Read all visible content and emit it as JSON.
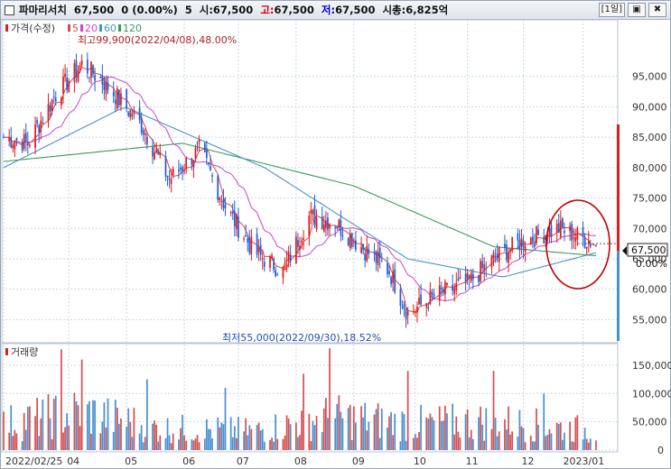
{
  "header": {
    "stock_name": "파마리서치",
    "price": "67,500",
    "change": "0 (0.00%)",
    "volume_label": "5",
    "open_label": "시:",
    "open": "67,500",
    "high_label": "고:",
    "high": "67,500",
    "low_label": "저:",
    "low": "67,500",
    "mcap_label": "시총:",
    "mcap": "6,825억",
    "period_button": "[1일]",
    "restore_icon": "restore-icon",
    "close_icon": "close-icon"
  },
  "colors": {
    "up": "#e21b1b",
    "down": "#1f5fd6",
    "ma5": "#e04646",
    "ma20": "#cc44cc",
    "ma60": "#4a90d0",
    "ma120": "#3a9a5a",
    "grid": "#c9d6e6",
    "current": "#111111",
    "highlight_circle": "#c40000",
    "volume": "#d65050"
  },
  "chart_data": [
    {
      "type": "candlestick",
      "title": "가격(수정)",
      "legend": [
        {
          "name": "5",
          "color": "#e04646"
        },
        {
          "name": "20",
          "color": "#cc44cc"
        },
        {
          "name": "60",
          "color": "#4a90d0"
        },
        {
          "name": "120",
          "color": "#3a9a5a"
        }
      ],
      "ylim": [
        51500,
        104000
      ],
      "y_ticks": [
        "95,000",
        "90,000",
        "85,000",
        "80,000",
        "75,000",
        "70,000",
        "65,000",
        "60,000",
        "55,000"
      ],
      "y_tick_values": [
        95000,
        90000,
        85000,
        80000,
        75000,
        70000,
        65000,
        60000,
        55000
      ],
      "current_price": "67,500",
      "current_change": "0.00%",
      "current_value": 67500,
      "ohlc_keypoints": [
        {
          "x": "2022-02-25",
          "close": 85000
        },
        {
          "x": "2022-03-10",
          "close": 84000
        },
        {
          "x": "2022-03-25",
          "close": 92000
        },
        {
          "x": "2022-04-08",
          "close": 97000
        },
        {
          "x": "2022-04-20",
          "close": 94000
        },
        {
          "x": "2022-05-10",
          "close": 87000
        },
        {
          "x": "2022-05-25",
          "close": 78000
        },
        {
          "x": "2022-06-10",
          "close": 83000
        },
        {
          "x": "2022-06-25",
          "close": 73000
        },
        {
          "x": "2022-07-10",
          "close": 66000
        },
        {
          "x": "2022-07-25",
          "close": 63000
        },
        {
          "x": "2022-08-08",
          "close": 72000
        },
        {
          "x": "2022-08-22",
          "close": 71000
        },
        {
          "x": "2022-09-05",
          "close": 67000
        },
        {
          "x": "2022-09-20",
          "close": 63000
        },
        {
          "x": "2022-09-30",
          "close": 56000
        },
        {
          "x": "2022-10-15",
          "close": 59000
        },
        {
          "x": "2022-11-01",
          "close": 61000
        },
        {
          "x": "2022-11-15",
          "close": 65000
        },
        {
          "x": "2022-12-01",
          "close": 68000
        },
        {
          "x": "2022-12-20",
          "close": 70000
        },
        {
          "x": "2023-01-09",
          "close": 67500
        }
      ],
      "ma120_keypoints": [
        {
          "x": "2022-02-25",
          "v": 81000
        },
        {
          "x": "2022-06-01",
          "v": 84000
        },
        {
          "x": "2022-09-01",
          "v": 77000
        },
        {
          "x": "2022-11-15",
          "v": 67000
        },
        {
          "x": "2023-01-09",
          "v": 65500
        }
      ],
      "ma60_keypoints": [
        {
          "x": "2022-02-25",
          "v": 80000
        },
        {
          "x": "2022-05-01",
          "v": 90000
        },
        {
          "x": "2022-07-15",
          "v": 80000
        },
        {
          "x": "2022-09-30",
          "v": 65000
        },
        {
          "x": "2022-11-20",
          "v": 62000
        },
        {
          "x": "2023-01-09",
          "v": 66000
        }
      ],
      "annotations": {
        "max": "최고99,900(2022/04/08),48.00%",
        "min": "최저55,000(2022/09/30),18.52%"
      }
    },
    {
      "type": "bar",
      "title": "거래량",
      "ylim": [
        0,
        185000
      ],
      "y_ticks": [
        "150,000",
        "100,000",
        "50,000",
        "0"
      ],
      "y_tick_values": [
        150000,
        100000,
        50000,
        0
      ],
      "volume_keypoints": [
        {
          "x": "2022-02-25",
          "v": 55000
        },
        {
          "x": "2022-04-08",
          "v": 80000
        },
        {
          "x": "2022-05-20",
          "v": 45000
        },
        {
          "x": "2022-07-10",
          "v": 40000
        },
        {
          "x": "2022-08-20",
          "v": 70000
        },
        {
          "x": "2022-10-01",
          "v": 55000
        },
        {
          "x": "2022-11-15",
          "v": 60000
        },
        {
          "x": "2023-01-09",
          "v": 40000
        }
      ],
      "volume_spikes": [
        {
          "x": "2022-03-28",
          "v": 178000
        },
        {
          "x": "2022-04-08",
          "v": 160000
        },
        {
          "x": "2022-05-13",
          "v": 125000
        },
        {
          "x": "2022-06-24",
          "v": 110000
        },
        {
          "x": "2022-08-19",
          "v": 180000
        },
        {
          "x": "2022-08-05",
          "v": 135000
        },
        {
          "x": "2022-09-30",
          "v": 140000
        },
        {
          "x": "2022-11-15",
          "v": 140000
        },
        {
          "x": "2022-12-12",
          "v": 100000
        }
      ]
    }
  ],
  "x_axis": {
    "labels": [
      "2022/02/25",
      "04",
      "05",
      "06",
      "07",
      "08",
      "09",
      "10",
      "11",
      "12",
      "2023/01"
    ],
    "dates": [
      "2022-02-25",
      "2022-04-01",
      "2022-05-02",
      "2022-06-02",
      "2022-07-01",
      "2022-08-01",
      "2022-09-01",
      "2022-10-04",
      "2022-11-01",
      "2022-12-01",
      "2023-01-02"
    ]
  }
}
